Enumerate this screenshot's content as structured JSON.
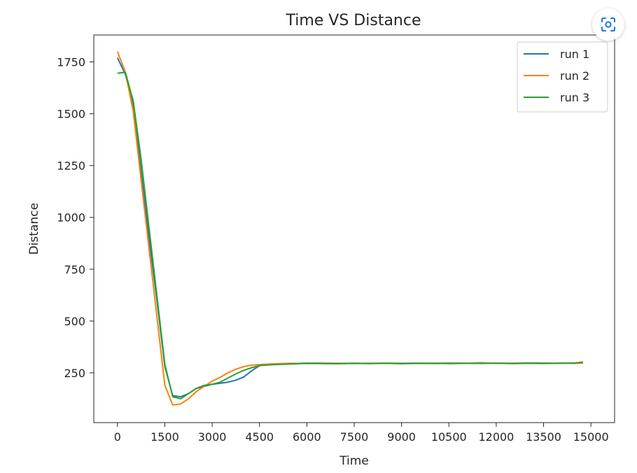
{
  "chart_data": {
    "type": "line",
    "title": "Time VS Distance",
    "xlabel": "Time",
    "ylabel": "Distance",
    "xlim": [
      -750,
      15750
    ],
    "ylim": [
      10,
      1880
    ],
    "xticks": [
      0,
      1500,
      3000,
      4500,
      6000,
      7500,
      9000,
      10500,
      12000,
      13500,
      15000
    ],
    "yticks": [
      250,
      500,
      750,
      1000,
      1250,
      1500,
      1750
    ],
    "grid": false,
    "legend": "top-right",
    "series": [
      {
        "name": "run 1",
        "color": "#1f77b4",
        "x": [
          0,
          250,
          500,
          750,
          1000,
          1250,
          1500,
          1750,
          2000,
          2250,
          2500,
          2750,
          3000,
          3250,
          3500,
          3750,
          4000,
          4250,
          4500,
          4750,
          5000,
          5500,
          6000,
          6500,
          7000,
          7500,
          8000,
          8500,
          9000,
          9500,
          10000,
          10500,
          11000,
          11500,
          12000,
          12500,
          13000,
          13500,
          14000,
          14500,
          14750
        ],
        "y": [
          1770,
          1690,
          1540,
          1220,
          900,
          600,
          280,
          140,
          135,
          150,
          175,
          185,
          195,
          200,
          205,
          215,
          230,
          260,
          285,
          292,
          292,
          295,
          297,
          297,
          296,
          296,
          296,
          296,
          296,
          297,
          296,
          298,
          297,
          296,
          297,
          297,
          298,
          297,
          297,
          298,
          300
        ]
      },
      {
        "name": "run 2",
        "color": "#ff7f0e",
        "x": [
          0,
          250,
          500,
          750,
          1000,
          1250,
          1500,
          1750,
          2000,
          2250,
          2500,
          2750,
          3000,
          3250,
          3500,
          3750,
          4000,
          4250,
          4500,
          4750,
          5000,
          5500,
          6000,
          6500,
          7000,
          7500,
          8000,
          8500,
          9000,
          9500,
          10000,
          10500,
          11000,
          11500,
          12000,
          12500,
          13000,
          13500,
          14000,
          14500,
          14750
        ],
        "y": [
          1800,
          1700,
          1510,
          1180,
          850,
          520,
          190,
          95,
          100,
          125,
          160,
          185,
          210,
          228,
          250,
          268,
          280,
          287,
          290,
          292,
          294,
          296,
          295,
          296,
          296,
          295,
          296,
          296,
          294,
          296,
          295,
          297,
          296,
          299,
          296,
          297,
          296,
          295,
          298,
          296,
          297
        ]
      },
      {
        "name": "run 3",
        "color": "#2ca02c",
        "x": [
          0,
          250,
          500,
          750,
          1000,
          1250,
          1500,
          1750,
          2000,
          2250,
          2500,
          2750,
          3000,
          3250,
          3500,
          3750,
          4000,
          4250,
          4500,
          4750,
          5000,
          5500,
          6000,
          6500,
          7000,
          7500,
          8000,
          8500,
          9000,
          9500,
          10000,
          10500,
          11000,
          11500,
          12000,
          12500,
          13000,
          13500,
          14000,
          14500,
          14750
        ],
        "y": [
          1695,
          1700,
          1560,
          1280,
          950,
          620,
          290,
          135,
          125,
          150,
          175,
          190,
          195,
          205,
          225,
          245,
          262,
          275,
          285,
          288,
          290,
          293,
          296,
          295,
          294,
          296,
          295,
          297,
          295,
          296,
          296,
          295,
          296,
          296,
          297,
          295,
          296,
          296,
          296,
          298,
          302
        ]
      }
    ]
  },
  "ui": {
    "lens_button_icon": "lens-scan-icon",
    "lens_color": "#1a73e8"
  }
}
